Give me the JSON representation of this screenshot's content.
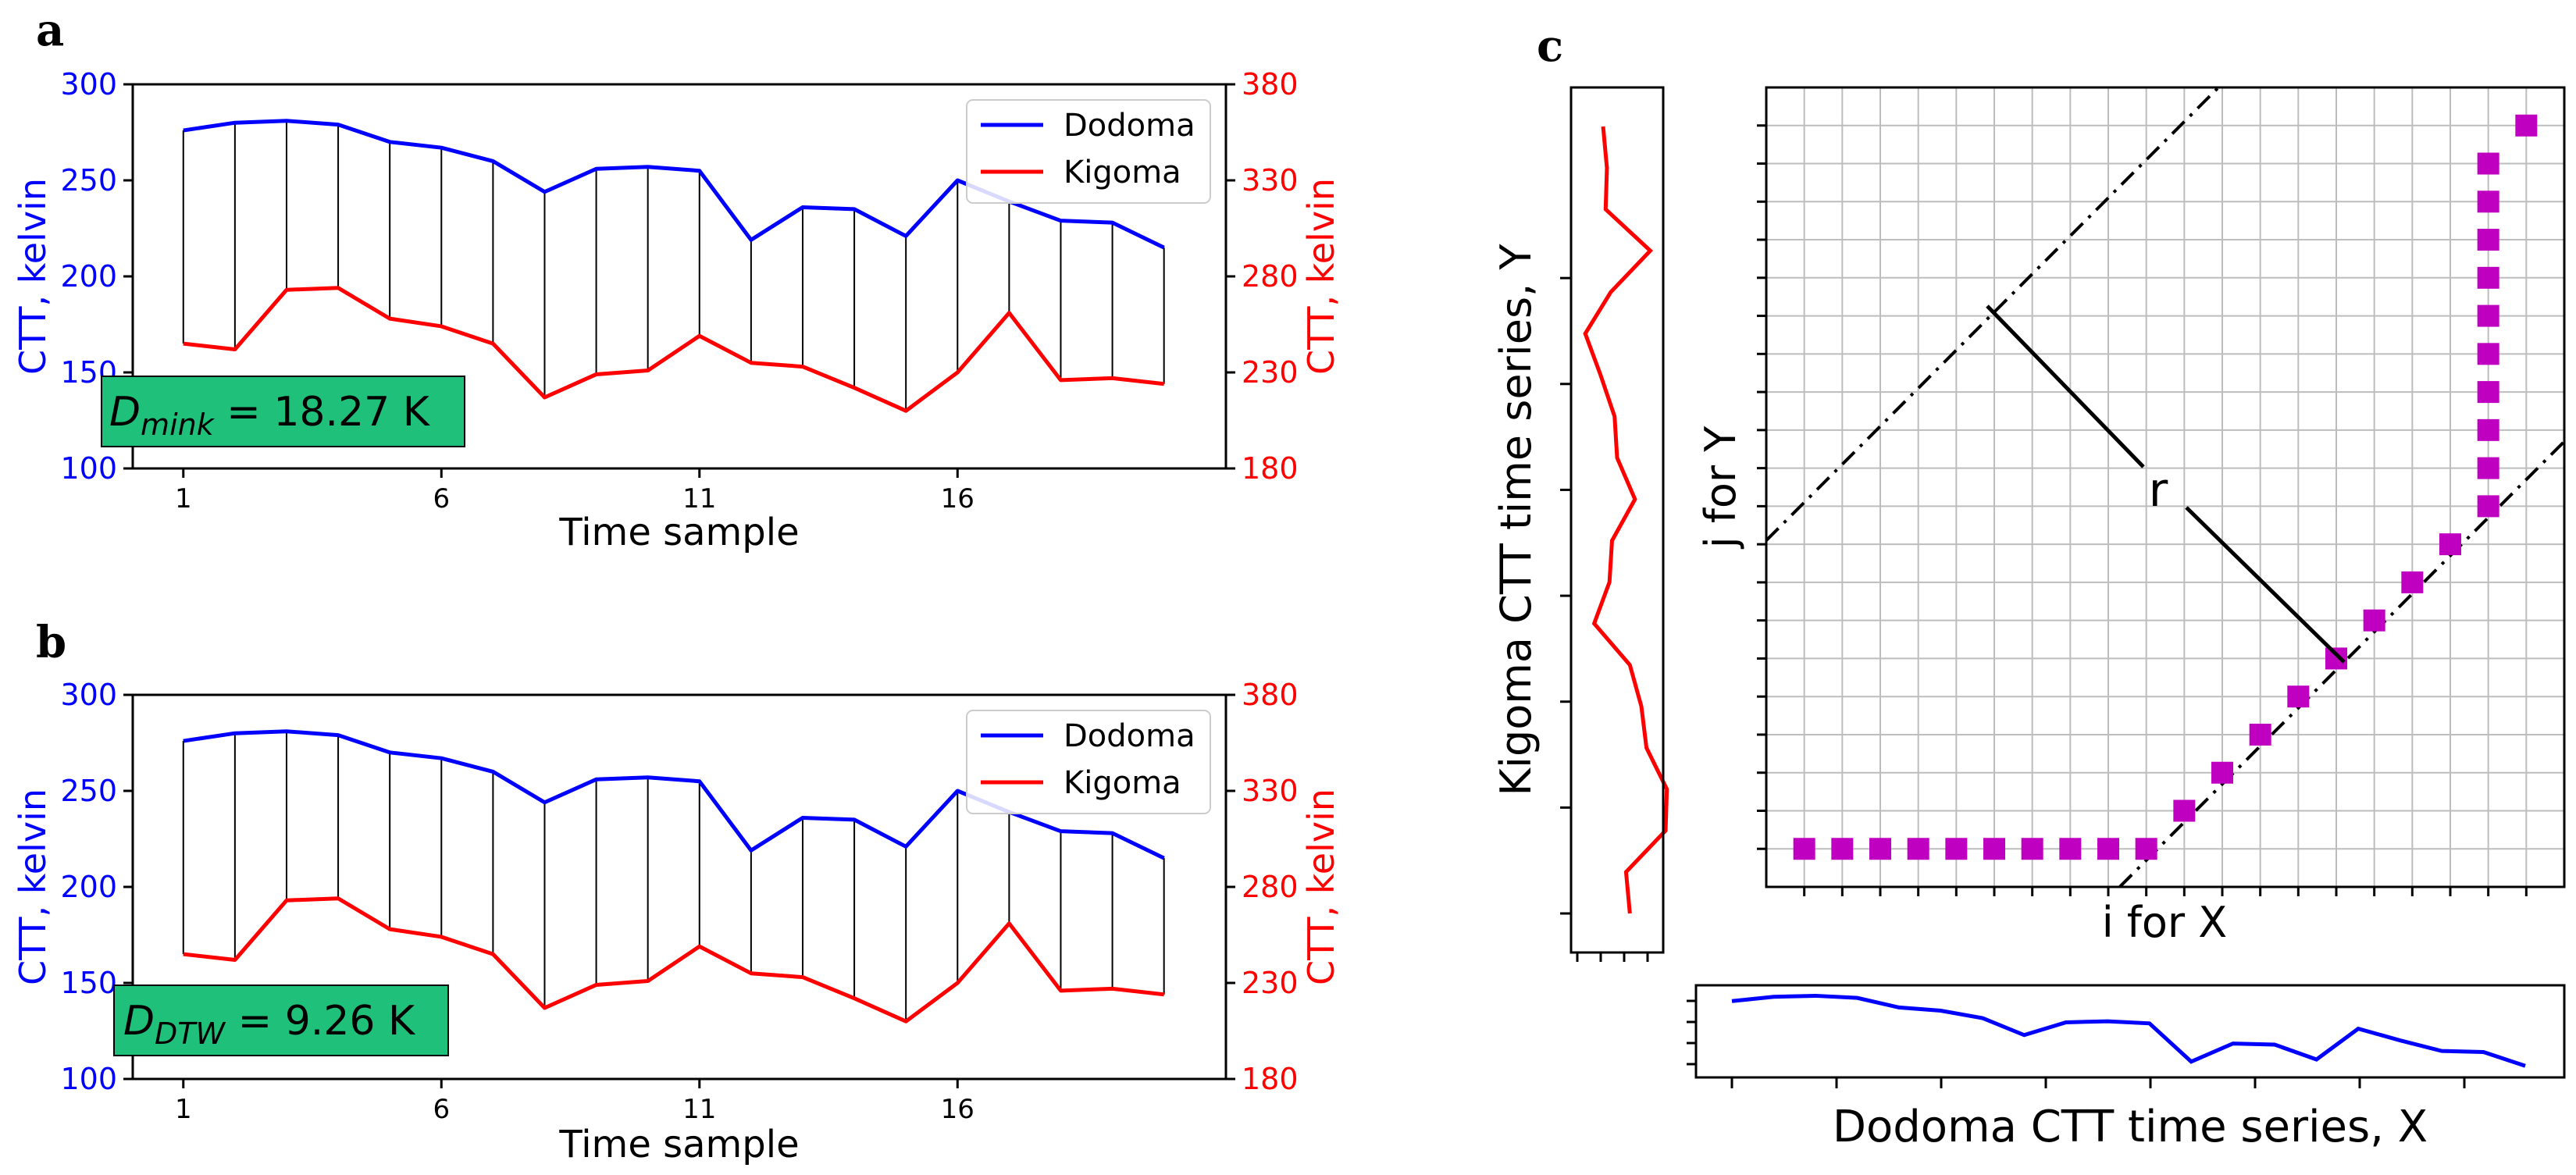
{
  "chart_data": [
    {
      "type": "line",
      "panel_label": "a",
      "x": [
        1,
        2,
        3,
        4,
        5,
        6,
        7,
        8,
        9,
        10,
        11,
        12,
        13,
        14,
        15,
        16,
        17,
        18,
        19,
        20
      ],
      "xticks": [
        "1",
        "6",
        "11",
        "16"
      ],
      "xlabel": "Time sample",
      "ylabel_left": "CTT, kelvin",
      "ylabel_right": "CTT, kelvin",
      "ylim_left": [
        100,
        300
      ],
      "ylim_right": [
        180,
        380
      ],
      "yticks_left": [
        "100",
        "150",
        "200",
        "250",
        "300"
      ],
      "yticks_right": [
        "180",
        "230",
        "280",
        "330",
        "380"
      ],
      "series": [
        {
          "name": "Dodoma",
          "color": "#0000ff",
          "axis": "left",
          "values": [
            276,
            280,
            281,
            279,
            270,
            267,
            260,
            244,
            256,
            257,
            255,
            219,
            236,
            235,
            221,
            250,
            239,
            229,
            228,
            215
          ]
        },
        {
          "name": "Kigoma",
          "color": "#ff0000",
          "axis": "right",
          "values": [
            245,
            242,
            273,
            274,
            258,
            254,
            245,
            217,
            229,
            231,
            249,
            235,
            233,
            222,
            210,
            230,
            261,
            226,
            227,
            224
          ]
        }
      ],
      "alignment": "one-to-one",
      "legend": "top-right",
      "annotation": {
        "symbol": "D",
        "subscript": "mink",
        "text": " = 18.27 K",
        "bg": "#1fc07a"
      }
    },
    {
      "type": "line",
      "panel_label": "b",
      "x": [
        1,
        2,
        3,
        4,
        5,
        6,
        7,
        8,
        9,
        10,
        11,
        12,
        13,
        14,
        15,
        16,
        17,
        18,
        19,
        20
      ],
      "xticks": [
        "1",
        "6",
        "11",
        "16"
      ],
      "xlabel": "Time sample",
      "ylabel_left": "CTT, kelvin",
      "ylabel_right": "CTT, kelvin",
      "ylim_left": [
        100,
        300
      ],
      "ylim_right": [
        180,
        380
      ],
      "yticks_left": [
        "100",
        "150",
        "200",
        "250",
        "300"
      ],
      "yticks_right": [
        "180",
        "230",
        "280",
        "330",
        "380"
      ],
      "series": [
        {
          "name": "Dodoma",
          "color": "#0000ff",
          "axis": "left",
          "values": [
            276,
            280,
            281,
            279,
            270,
            267,
            260,
            244,
            256,
            257,
            255,
            219,
            236,
            235,
            221,
            250,
            239,
            229,
            228,
            215
          ]
        },
        {
          "name": "Kigoma",
          "color": "#ff0000",
          "axis": "right",
          "values": [
            245,
            242,
            273,
            274,
            258,
            254,
            245,
            217,
            229,
            231,
            249,
            235,
            233,
            222,
            210,
            230,
            261,
            226,
            227,
            224
          ]
        }
      ],
      "alignment": "dtw",
      "legend": "top-right",
      "annotation": {
        "symbol": "D",
        "subscript": "DTW",
        "text": " = 9.26 K",
        "bg": "#1fc07a"
      }
    },
    {
      "type": "scatter",
      "panel_label": "c",
      "grid_size": 20,
      "xlabel": "i for X",
      "ylabel": "j for Y",
      "side_ylabel": "Kigoma CTT time series, Y",
      "bottom_xlabel": "Dodoma CTT time series, X",
      "band_label": "r",
      "marker_color": "#c000c0",
      "warp_path_i": [
        1,
        2,
        3,
        4,
        5,
        6,
        7,
        8,
        9,
        10,
        11,
        12,
        13,
        14,
        15,
        16,
        17,
        18,
        19,
        19,
        19,
        19,
        19,
        19,
        19,
        19,
        19,
        19,
        20
      ],
      "warp_path_j": [
        1,
        1,
        1,
        1,
        1,
        1,
        1,
        1,
        1,
        1,
        2,
        3,
        4,
        5,
        6,
        7,
        8,
        9,
        10,
        11,
        12,
        13,
        14,
        15,
        16,
        17,
        18,
        19,
        20
      ]
    }
  ]
}
